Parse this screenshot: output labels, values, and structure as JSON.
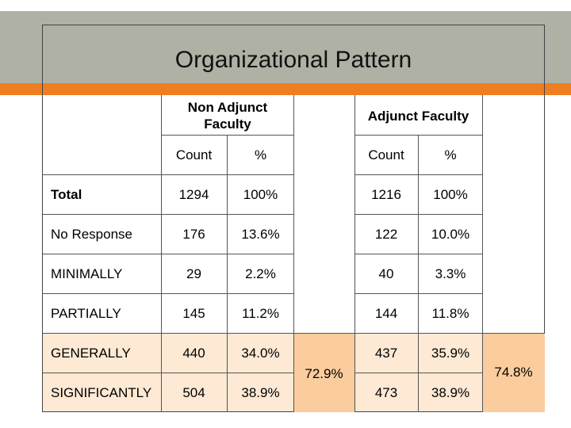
{
  "slide": {
    "title": "Organizational Pattern"
  },
  "table": {
    "group_headers": {
      "non_adjunct": "Non Adjunct Faculty",
      "adjunct": "Adjunct Faculty"
    },
    "sub_headers": {
      "count": "Count",
      "percent": "%"
    },
    "rows": [
      {
        "label": "Total",
        "na_count": "1294",
        "na_pct": "100%",
        "a_count": "1216",
        "a_pct": "100%"
      },
      {
        "label": "No Response",
        "na_count": "176",
        "na_pct": "13.6%",
        "a_count": "122",
        "a_pct": "10.0%"
      },
      {
        "label": "MINIMALLY",
        "na_count": "29",
        "na_pct": "2.2%",
        "a_count": "40",
        "a_pct": "3.3%"
      },
      {
        "label": "PARTIALLY",
        "na_count": "145",
        "na_pct": "11.2%",
        "a_count": "144",
        "a_pct": "11.8%"
      },
      {
        "label": "GENERALLY",
        "na_count": "440",
        "na_pct": "34.0%",
        "a_count": "437",
        "a_pct": "35.9%"
      },
      {
        "label": "SIGNIFICANTLY",
        "na_count": "504",
        "na_pct": "38.9%",
        "a_count": "473",
        "a_pct": "38.9%"
      }
    ],
    "combined": {
      "non_adjunct": "72.9%",
      "adjunct": "74.8%"
    }
  },
  "colors": {
    "title_band": "#aeb1a3",
    "accent_orange": "#ef7d22",
    "highlight_light": "#fde9d4",
    "highlight_combined": "#fbcc9d"
  }
}
